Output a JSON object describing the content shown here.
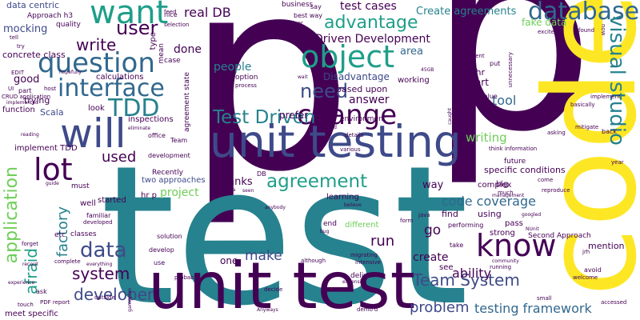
{
  "palette": {
    "purple": "#440154",
    "indigo": "#3e4a89",
    "blue": "#31688e",
    "teal": "#26828e",
    "green": "#1f9e89",
    "lime": "#6ece58",
    "yellow": "#fde725"
  },
  "words": [
    "p",
    "p",
    "code",
    "test",
    "unit test",
    "unit testing",
    "will",
    "want",
    "database",
    "question",
    "object",
    "change",
    "interface",
    "TDD",
    "lot",
    "know",
    "visual studio",
    "Test Driven",
    "agreement",
    "application",
    "factory",
    "data",
    "system",
    "developer",
    "afraid",
    "Team System",
    "problem",
    "testing framework",
    "code coverage",
    "user",
    "write",
    "need",
    "advantage",
    "real DB",
    "test cases",
    "Create agreements",
    "Driven Development",
    "area",
    "tool",
    "writing",
    "ability",
    "create",
    "answer",
    "make",
    "run",
    "go",
    "used",
    "project",
    "people",
    "done",
    "mocking",
    "data centric",
    "Approach h3",
    "quality",
    "concrete class",
    "good",
    "fake data",
    "specific conditions",
    "Disadvantage",
    "based upon",
    "start",
    "working",
    "p hr",
    "Thanks",
    "two approaches",
    "Recently",
    "started",
    "well",
    "must",
    "see",
    "find",
    "using",
    "complex",
    "big",
    "pass",
    "Second Approach",
    "strong",
    "mention",
    "one",
    "way",
    "end",
    "hr p",
    "implement TDD",
    "function",
    "Scala",
    "inspections",
    "look",
    "calculations",
    "option",
    "prefer",
    "environment",
    "business",
    "best way",
    "say",
    "Resharper",
    "type",
    "nice",
    "case",
    "future",
    "think information",
    "asking",
    "mitigate",
    "back",
    "year",
    "found",
    "excited",
    "now",
    "unnecessary",
    "implement",
    "value",
    "basically",
    "route",
    "selection",
    "feed",
    "process",
    "45GB",
    "wait",
    "present",
    "put",
    "caught",
    "details",
    "forced",
    "various",
    "office",
    "Team",
    "eliminate",
    "development",
    "DB",
    "schema",
    "seen",
    "learning",
    "anybody",
    "believe",
    "different",
    "java",
    "form",
    "much",
    "NUnit",
    "come",
    "googled",
    "reproduce",
    "management",
    "guide",
    "etc",
    "classes",
    "familiar",
    "developed",
    "solution",
    "develop",
    "use",
    "probably",
    "forget",
    "record",
    "complete",
    "everything",
    "experience",
    "ask",
    "PDF report",
    "touch",
    "outside",
    "meet specific",
    "gameplan",
    "Anyways",
    "decide",
    "although",
    "migrating",
    "intensive",
    "running",
    "community",
    "small",
    "accessed",
    "welcome",
    "avoid",
    "jrh",
    "take",
    "performing",
    "deliver",
    "demo'd",
    "expensive",
    "CRUD application",
    "implemented",
    "reading",
    "trying",
    "hopefully",
    "part",
    "host",
    "EDIT",
    "try",
    "tell",
    "UI",
    "agreement state",
    "mean",
    "may",
    "bug"
  ]
}
